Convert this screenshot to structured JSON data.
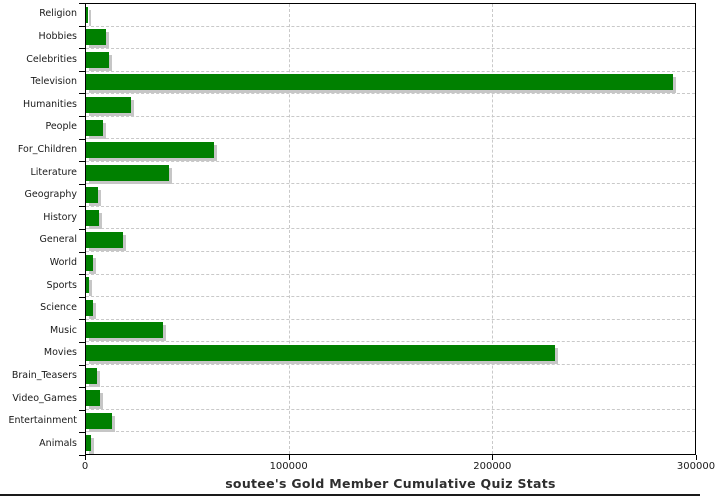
{
  "title": "soutee's Gold Member Cumulative Quiz Stats",
  "chart_data": {
    "type": "bar",
    "orientation": "horizontal",
    "title": "soutee's Gold Member Cumulative Quiz Stats",
    "categories": [
      "Religion",
      "Hobbies",
      "Celebrities",
      "Television",
      "Humanities",
      "People",
      "For_Children",
      "Literature",
      "Geography",
      "History",
      "General",
      "World",
      "Sports",
      "Science",
      "Music",
      "Movies",
      "Brain_Teasers",
      "Video_Games",
      "Entertainment",
      "Animals"
    ],
    "values": [
      1200,
      9800,
      11500,
      289000,
      22300,
      8500,
      63200,
      40700,
      5800,
      6600,
      18100,
      3600,
      1600,
      3300,
      38000,
      231000,
      5600,
      6700,
      12800,
      2300
    ],
    "xlim": [
      0,
      300000
    ],
    "x_ticks": [
      0,
      100000,
      200000,
      300000
    ],
    "x_tick_labels": [
      "0",
      "100000",
      "200000",
      "300000"
    ],
    "grid": "dashed",
    "legend": "none",
    "bar_color": "#008000",
    "shadow_color": "#c6c6c6",
    "grid_color": "#c9c9c9",
    "axis_color": "#000000",
    "text_color": "#1a1a1a"
  }
}
